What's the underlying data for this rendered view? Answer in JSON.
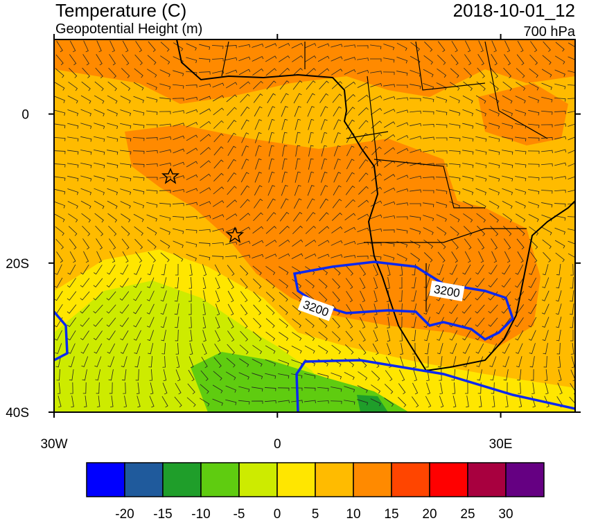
{
  "header": {
    "title": "Temperature (C)",
    "subtitle": "Geopotential Height (m)",
    "date": "2018-10-01_12",
    "level": "700 hPa"
  },
  "map": {
    "xlim": [
      -30,
      40
    ],
    "ylim": [
      -40,
      10
    ],
    "xticks": [
      {
        "value": -30,
        "label": "30W"
      },
      {
        "value": 0,
        "label": "0"
      },
      {
        "value": 30,
        "label": "30E"
      }
    ],
    "yticks": [
      {
        "value": 0,
        "label": "0"
      },
      {
        "value": -20,
        "label": "20S"
      },
      {
        "value": -40,
        "label": "40S"
      }
    ],
    "contour_labels": [
      "3200",
      "3200"
    ]
  },
  "colorbar": {
    "colors": [
      "#0000ff",
      "#1f5a9c",
      "#1f9e2a",
      "#5fcc10",
      "#cdeb00",
      "#ffe600",
      "#ffbb00",
      "#ff8a00",
      "#ff4500",
      "#ff0000",
      "#a8003f",
      "#650082"
    ],
    "ticks": [
      -20,
      -15,
      -10,
      -5,
      0,
      5,
      10,
      15,
      20,
      25,
      30
    ]
  }
}
